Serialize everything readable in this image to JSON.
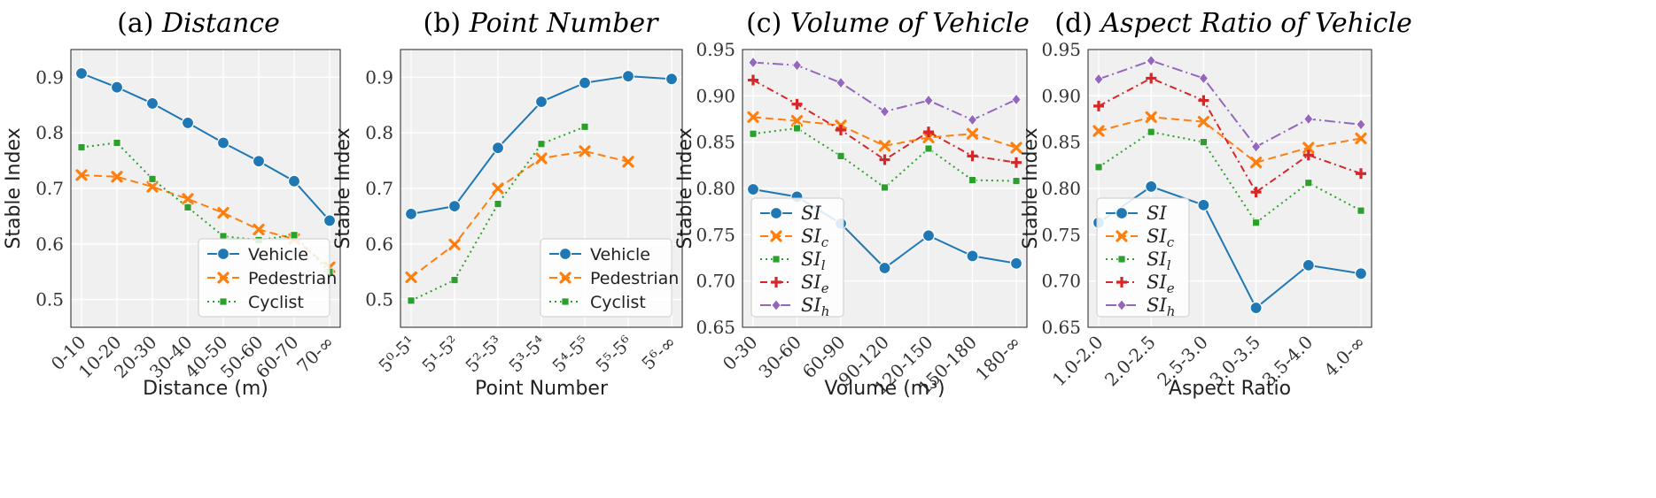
{
  "chart_data": [
    {
      "type": "line",
      "title_prefix": "(a)",
      "title_italic": "Distance",
      "xlabel": "Distance (m)",
      "ylabel": "Stable Index",
      "categories": [
        "0-10",
        "10-20",
        "20-30",
        "30-40",
        "40-50",
        "50-60",
        "60-70",
        "70-∞"
      ],
      "ylim": [
        0.45,
        0.95
      ],
      "yticks": [
        "0.5",
        "0.6",
        "0.7",
        "0.8",
        "0.9"
      ],
      "legend": "lower-right",
      "grid": true,
      "series": [
        {
          "name": "Vehicle",
          "color": "#1f77b4",
          "style": "solid",
          "marker": "circle",
          "values": [
            0.907,
            0.882,
            0.853,
            0.818,
            0.782,
            0.749,
            0.713,
            0.642
          ]
        },
        {
          "name": "Pedestrian",
          "color": "#ff7f0e",
          "style": "dash",
          "marker": "x",
          "values": [
            0.724,
            0.721,
            0.703,
            0.681,
            0.656,
            0.626,
            0.609,
            0.558
          ]
        },
        {
          "name": "Cyclist",
          "color": "#2ca02c",
          "style": "dot",
          "marker": "square",
          "values": [
            0.774,
            0.782,
            0.717,
            0.666,
            0.614,
            0.607,
            0.616,
            0.55
          ]
        }
      ]
    },
    {
      "type": "line",
      "title_prefix": "(b)",
      "title_italic": "Point Number",
      "xlabel": "Point Number",
      "ylabel": "Stable Index",
      "categories": [
        "5⁰-5¹",
        "5¹-5²",
        "5²-5³",
        "5³-5⁴",
        "5⁴-5⁵",
        "5⁵-5⁶",
        "5⁶-∞"
      ],
      "ylim": [
        0.45,
        0.95
      ],
      "yticks": [
        "0.5",
        "0.6",
        "0.7",
        "0.8",
        "0.9"
      ],
      "legend": "lower-right",
      "grid": true,
      "series": [
        {
          "name": "Vehicle",
          "color": "#1f77b4",
          "style": "solid",
          "marker": "circle",
          "values": [
            0.654,
            0.668,
            0.773,
            0.856,
            0.89,
            0.902,
            0.897
          ]
        },
        {
          "name": "Pedestrian",
          "color": "#ff7f0e",
          "style": "dash",
          "marker": "x",
          "values": [
            0.54,
            0.599,
            0.7,
            0.754,
            0.767,
            0.748,
            null
          ]
        },
        {
          "name": "Cyclist",
          "color": "#2ca02c",
          "style": "dot",
          "marker": "square",
          "values": [
            0.498,
            0.535,
            0.672,
            0.78,
            0.811,
            null,
            null
          ]
        }
      ]
    },
    {
      "type": "line",
      "title_prefix": "(c)",
      "title_italic": "Volume of Vehicle",
      "xlabel": "Volume (m³)",
      "ylabel": "Stable Index",
      "categories": [
        "0-30",
        "30-60",
        "60-90",
        "90-120",
        "120-150",
        "150-180",
        "180-∞"
      ],
      "ylim": [
        0.65,
        0.95
      ],
      "yticks": [
        "0.65",
        "0.70",
        "0.75",
        "0.80",
        "0.85",
        "0.90",
        "0.95"
      ],
      "legend": "lower-left",
      "grid": true,
      "series": [
        {
          "name": "SI",
          "sub": "",
          "color": "#1f77b4",
          "style": "solid",
          "marker": "circle",
          "values": [
            0.799,
            0.791,
            0.762,
            0.714,
            0.749,
            0.727,
            0.719
          ]
        },
        {
          "name": "SI",
          "sub": "c",
          "color": "#ff7f0e",
          "style": "dash",
          "marker": "x",
          "values": [
            0.877,
            0.873,
            0.868,
            0.846,
            0.855,
            0.859,
            0.844
          ]
        },
        {
          "name": "SI",
          "sub": "l",
          "color": "#2ca02c",
          "style": "dot",
          "marker": "square",
          "values": [
            0.859,
            0.865,
            0.835,
            0.801,
            0.843,
            0.809,
            0.808
          ]
        },
        {
          "name": "SI",
          "sub": "e",
          "color": "#d62728",
          "style": "dashdot",
          "marker": "plus",
          "values": [
            0.917,
            0.891,
            0.863,
            0.831,
            0.861,
            0.835,
            0.828
          ]
        },
        {
          "name": "SI",
          "sub": "h",
          "color": "#9467bd",
          "style": "longdashdot",
          "marker": "diamond",
          "values": [
            0.936,
            0.933,
            0.914,
            0.883,
            0.895,
            0.874,
            0.896
          ]
        }
      ]
    },
    {
      "type": "line",
      "title_prefix": "(d)",
      "title_italic": "Aspect Ratio of Vehicle",
      "xlabel": "Aspect Ratio",
      "ylabel": "Stable Index",
      "categories": [
        "1.0-2.0",
        "2.0-2.5",
        "2.5-3.0",
        "3.0-3.5",
        "3.5-4.0",
        "4.0-∞"
      ],
      "ylim": [
        0.65,
        0.95
      ],
      "yticks": [
        "0.65",
        "0.70",
        "0.75",
        "0.80",
        "0.85",
        "0.90",
        "0.95"
      ],
      "legend": "lower-left",
      "grid": true,
      "series": [
        {
          "name": "SI",
          "sub": "",
          "color": "#1f77b4",
          "style": "solid",
          "marker": "circle",
          "values": [
            0.763,
            0.802,
            0.782,
            0.671,
            0.717,
            0.708
          ]
        },
        {
          "name": "SI",
          "sub": "c",
          "color": "#ff7f0e",
          "style": "dash",
          "marker": "x",
          "values": [
            0.862,
            0.877,
            0.872,
            0.828,
            0.844,
            0.854
          ]
        },
        {
          "name": "SI",
          "sub": "l",
          "color": "#2ca02c",
          "style": "dot",
          "marker": "square",
          "values": [
            0.823,
            0.861,
            0.85,
            0.763,
            0.806,
            0.776
          ]
        },
        {
          "name": "SI",
          "sub": "e",
          "color": "#d62728",
          "style": "dashdot",
          "marker": "plus",
          "values": [
            0.889,
            0.919,
            0.895,
            0.796,
            0.836,
            0.816
          ]
        },
        {
          "name": "SI",
          "sub": "h",
          "color": "#9467bd",
          "style": "longdashdot",
          "marker": "diamond",
          "values": [
            0.918,
            0.938,
            0.919,
            0.845,
            0.875,
            0.869
          ]
        }
      ]
    }
  ]
}
